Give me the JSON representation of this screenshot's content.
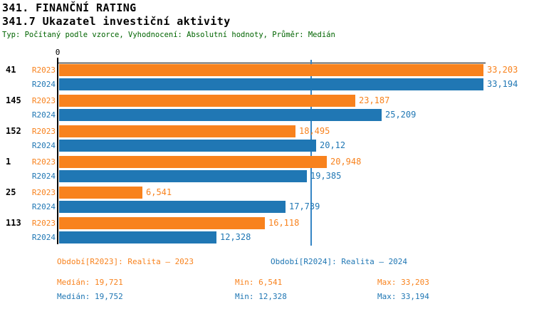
{
  "header": {
    "title1": "341. FINANČNÍ RATING",
    "title2": "341.7 Ukazatel investiční aktivity",
    "subtitle": "Typ: Počítaný podle vzorce, Vyhodnocení: Absolutní hodnoty, Průměr: Medián"
  },
  "colors": {
    "series_r2023": "#F8821D",
    "series_r2024": "#2077B4",
    "median_line": "#3585C5",
    "subtitle_text": "#006400",
    "axis": "#000000"
  },
  "chart_data": {
    "type": "bar",
    "orientation": "horizontal",
    "grid": false,
    "zero_label": "0",
    "xmax": 33.203,
    "categories": [
      "41",
      "145",
      "152",
      "1",
      "25",
      "113"
    ],
    "series": [
      {
        "name": "R2023",
        "color": "#F8821D",
        "values": [
          33.203,
          23.187,
          18.495,
          20.948,
          6.541,
          16.118
        ],
        "labels": [
          "33,203",
          "23,187",
          "18,495",
          "20,948",
          "6,541",
          "16,118"
        ]
      },
      {
        "name": "R2024",
        "color": "#2077B4",
        "values": [
          33.194,
          25.209,
          20.12,
          19.385,
          17.739,
          12.328
        ],
        "labels": [
          "33,194",
          "25,209",
          "20,12",
          "19,385",
          "17,739",
          "12,328"
        ]
      }
    ],
    "median_line_value": 19.721
  },
  "legend": [
    {
      "label": "Období[R2023]: Realita – 2023",
      "color": "#F8821D"
    },
    {
      "label": "Období[R2024]: Realita – 2024",
      "color": "#2077B4"
    }
  ],
  "stats": [
    {
      "median": "Medián: 19,721",
      "min": "Min: 6,541",
      "max": "Max: 33,203"
    },
    {
      "median": "Medián: 19,752",
      "min": "Min: 12,328",
      "max": "Max: 33,194"
    }
  ]
}
